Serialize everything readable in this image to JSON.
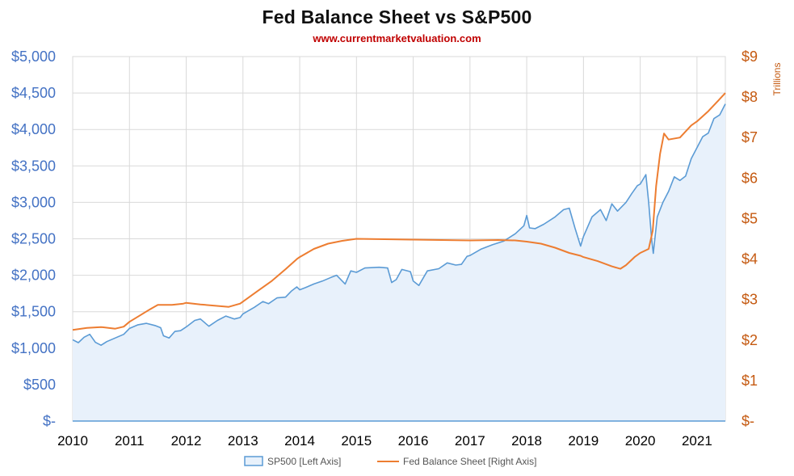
{
  "header": {
    "title": "Fed Balance Sheet vs S&P500",
    "subtitle": "www.currentmarketvaluation.com"
  },
  "colors": {
    "sp500_line": "#5b9bd5",
    "sp500_fill": "#e8f1fb",
    "fed_line": "#ed7d31",
    "left_axis_text": "#4472c4",
    "right_axis_text": "#c55a11",
    "grid": "#d9d9d9",
    "subtitle": "#c00000"
  },
  "chart_data": {
    "type": "area",
    "title": "Fed Balance Sheet vs S&P500",
    "subtitle": "www.currentmarketvaluation.com",
    "x_ticks": [
      "2010",
      "2011",
      "2012",
      "2013",
      "2014",
      "2015",
      "2016",
      "2017",
      "2018",
      "2019",
      "2020",
      "2021"
    ],
    "xlim": [
      2010.0,
      2021.5
    ],
    "y_left": {
      "ylim": [
        0,
        5000
      ],
      "ticks": [
        0,
        500,
        1000,
        1500,
        2000,
        2500,
        3000,
        3500,
        4000,
        4500,
        5000
      ],
      "tick_labels": [
        "$-",
        "$500",
        "$1,000",
        "$1,500",
        "$2,000",
        "$2,500",
        "$3,000",
        "$3,500",
        "$4,000",
        "$4,500",
        "$5,000"
      ]
    },
    "y_right": {
      "label": "Trillions",
      "ylim": [
        0,
        9
      ],
      "ticks": [
        0,
        1,
        2,
        3,
        4,
        5,
        6,
        7,
        8,
        9
      ],
      "tick_labels": [
        "$-",
        "$1",
        "$2",
        "$3",
        "$4",
        "$5",
        "$6",
        "$7",
        "$8",
        "$9"
      ]
    },
    "grid": true,
    "legend_position": "bottom",
    "series": [
      {
        "name": "SP500 [Left Axis]",
        "axis": "left",
        "style": "area",
        "points": [
          [
            2010.0,
            1115
          ],
          [
            2010.1,
            1075
          ],
          [
            2010.2,
            1150
          ],
          [
            2010.3,
            1190
          ],
          [
            2010.4,
            1080
          ],
          [
            2010.5,
            1040
          ],
          [
            2010.6,
            1090
          ],
          [
            2010.75,
            1140
          ],
          [
            2010.9,
            1190
          ],
          [
            2011.0,
            1270
          ],
          [
            2011.15,
            1320
          ],
          [
            2011.3,
            1340
          ],
          [
            2011.45,
            1310
          ],
          [
            2011.55,
            1280
          ],
          [
            2011.6,
            1170
          ],
          [
            2011.7,
            1140
          ],
          [
            2011.8,
            1230
          ],
          [
            2011.9,
            1240
          ],
          [
            2012.0,
            1290
          ],
          [
            2012.15,
            1380
          ],
          [
            2012.25,
            1400
          ],
          [
            2012.4,
            1300
          ],
          [
            2012.55,
            1380
          ],
          [
            2012.7,
            1440
          ],
          [
            2012.85,
            1400
          ],
          [
            2012.95,
            1420
          ],
          [
            2013.0,
            1470
          ],
          [
            2013.2,
            1560
          ],
          [
            2013.35,
            1640
          ],
          [
            2013.45,
            1610
          ],
          [
            2013.6,
            1690
          ],
          [
            2013.75,
            1700
          ],
          [
            2013.85,
            1780
          ],
          [
            2013.95,
            1840
          ],
          [
            2014.0,
            1800
          ],
          [
            2014.1,
            1830
          ],
          [
            2014.25,
            1880
          ],
          [
            2014.4,
            1920
          ],
          [
            2014.55,
            1970
          ],
          [
            2014.65,
            2000
          ],
          [
            2014.8,
            1880
          ],
          [
            2014.9,
            2060
          ],
          [
            2015.0,
            2040
          ],
          [
            2015.15,
            2100
          ],
          [
            2015.4,
            2110
          ],
          [
            2015.55,
            2100
          ],
          [
            2015.62,
            1900
          ],
          [
            2015.7,
            1940
          ],
          [
            2015.8,
            2080
          ],
          [
            2015.95,
            2050
          ],
          [
            2016.0,
            1920
          ],
          [
            2016.1,
            1860
          ],
          [
            2016.25,
            2060
          ],
          [
            2016.45,
            2090
          ],
          [
            2016.6,
            2170
          ],
          [
            2016.75,
            2140
          ],
          [
            2016.85,
            2150
          ],
          [
            2016.95,
            2260
          ],
          [
            2017.0,
            2270
          ],
          [
            2017.2,
            2360
          ],
          [
            2017.4,
            2420
          ],
          [
            2017.6,
            2470
          ],
          [
            2017.8,
            2570
          ],
          [
            2017.95,
            2680
          ],
          [
            2018.0,
            2820
          ],
          [
            2018.05,
            2650
          ],
          [
            2018.15,
            2640
          ],
          [
            2018.3,
            2700
          ],
          [
            2018.5,
            2800
          ],
          [
            2018.65,
            2900
          ],
          [
            2018.75,
            2920
          ],
          [
            2018.85,
            2650
          ],
          [
            2018.95,
            2400
          ],
          [
            2019.0,
            2530
          ],
          [
            2019.15,
            2800
          ],
          [
            2019.3,
            2900
          ],
          [
            2019.4,
            2750
          ],
          [
            2019.5,
            2980
          ],
          [
            2019.6,
            2880
          ],
          [
            2019.75,
            3000
          ],
          [
            2019.85,
            3120
          ],
          [
            2019.95,
            3230
          ],
          [
            2020.0,
            3250
          ],
          [
            2020.1,
            3380
          ],
          [
            2020.15,
            3000
          ],
          [
            2020.2,
            2500
          ],
          [
            2020.23,
            2300
          ],
          [
            2020.3,
            2800
          ],
          [
            2020.4,
            3000
          ],
          [
            2020.5,
            3150
          ],
          [
            2020.6,
            3350
          ],
          [
            2020.7,
            3300
          ],
          [
            2020.8,
            3360
          ],
          [
            2020.9,
            3600
          ],
          [
            2021.0,
            3750
          ],
          [
            2021.1,
            3900
          ],
          [
            2021.2,
            3950
          ],
          [
            2021.3,
            4150
          ],
          [
            2021.4,
            4200
          ],
          [
            2021.5,
            4350
          ]
        ]
      },
      {
        "name": "Fed Balance Sheet [Right Axis]",
        "axis": "right",
        "style": "line",
        "points": [
          [
            2010.0,
            2.25
          ],
          [
            2010.25,
            2.3
          ],
          [
            2010.5,
            2.32
          ],
          [
            2010.75,
            2.28
          ],
          [
            2010.9,
            2.33
          ],
          [
            2011.0,
            2.45
          ],
          [
            2011.2,
            2.62
          ],
          [
            2011.35,
            2.75
          ],
          [
            2011.5,
            2.87
          ],
          [
            2011.75,
            2.87
          ],
          [
            2011.95,
            2.9
          ],
          [
            2012.0,
            2.92
          ],
          [
            2012.25,
            2.88
          ],
          [
            2012.5,
            2.85
          ],
          [
            2012.75,
            2.82
          ],
          [
            2012.95,
            2.9
          ],
          [
            2013.0,
            2.95
          ],
          [
            2013.25,
            3.2
          ],
          [
            2013.5,
            3.45
          ],
          [
            2013.75,
            3.75
          ],
          [
            2013.95,
            4.0
          ],
          [
            2014.0,
            4.05
          ],
          [
            2014.25,
            4.25
          ],
          [
            2014.5,
            4.38
          ],
          [
            2014.75,
            4.45
          ],
          [
            2014.95,
            4.49
          ],
          [
            2015.0,
            4.5
          ],
          [
            2015.5,
            4.49
          ],
          [
            2016.0,
            4.48
          ],
          [
            2016.5,
            4.47
          ],
          [
            2017.0,
            4.46
          ],
          [
            2017.5,
            4.47
          ],
          [
            2017.8,
            4.46
          ],
          [
            2018.0,
            4.43
          ],
          [
            2018.25,
            4.38
          ],
          [
            2018.5,
            4.28
          ],
          [
            2018.75,
            4.15
          ],
          [
            2018.95,
            4.08
          ],
          [
            2019.0,
            4.05
          ],
          [
            2019.25,
            3.95
          ],
          [
            2019.5,
            3.82
          ],
          [
            2019.65,
            3.76
          ],
          [
            2019.75,
            3.85
          ],
          [
            2019.9,
            4.05
          ],
          [
            2020.0,
            4.15
          ],
          [
            2020.15,
            4.25
          ],
          [
            2020.22,
            4.7
          ],
          [
            2020.28,
            5.8
          ],
          [
            2020.35,
            6.6
          ],
          [
            2020.42,
            7.1
          ],
          [
            2020.5,
            6.95
          ],
          [
            2020.7,
            7.0
          ],
          [
            2020.9,
            7.3
          ],
          [
            2021.0,
            7.4
          ],
          [
            2021.2,
            7.65
          ],
          [
            2021.4,
            7.95
          ],
          [
            2021.5,
            8.1
          ]
        ]
      }
    ]
  }
}
